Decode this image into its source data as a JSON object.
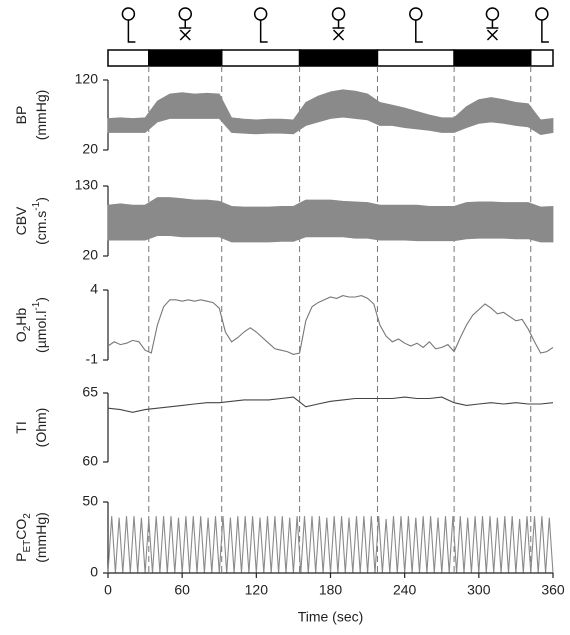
{
  "phases": [
    {
      "start": 0,
      "end": 33,
      "fill": "#ffffff"
    },
    {
      "start": 33,
      "end": 92,
      "fill": "#000000"
    },
    {
      "start": 92,
      "end": 155,
      "fill": "#ffffff"
    },
    {
      "start": 155,
      "end": 218,
      "fill": "#000000"
    },
    {
      "start": 218,
      "end": 280,
      "fill": "#ffffff"
    },
    {
      "start": 280,
      "end": 342,
      "fill": "#000000"
    },
    {
      "start": 342,
      "end": 360,
      "fill": "#ffffff"
    }
  ],
  "chart_data": [
    {
      "type": "band",
      "color": "#8a8a8a",
      "ylabel": [
        [
          {
            "text": "BP"
          }
        ],
        [
          {
            "text": "(mmHg)"
          }
        ]
      ],
      "xlim": [
        0,
        360
      ],
      "ylim": [
        20,
        120
      ],
      "yticks": [
        20,
        120
      ],
      "x": [
        0,
        10,
        20,
        30,
        40,
        50,
        60,
        70,
        80,
        90,
        100,
        110,
        120,
        130,
        140,
        150,
        160,
        170,
        180,
        190,
        200,
        210,
        220,
        230,
        240,
        250,
        260,
        270,
        280,
        290,
        300,
        310,
        320,
        330,
        340,
        350,
        360
      ],
      "series": [
        {
          "values": [
            45,
            45,
            45,
            45,
            60,
            65,
            65,
            65,
            65,
            65,
            45,
            44,
            43,
            44,
            44,
            43,
            55,
            60,
            65,
            67,
            65,
            63,
            55,
            55,
            52,
            50,
            48,
            45,
            45,
            52,
            58,
            60,
            58,
            55,
            53,
            42,
            45
          ]
        },
        {
          "values": [
            65,
            66,
            65,
            66,
            90,
            100,
            102,
            100,
            101,
            100,
            66,
            64,
            63,
            64,
            64,
            63,
            88,
            97,
            103,
            106,
            104,
            100,
            88,
            84,
            80,
            75,
            70,
            66,
            66,
            82,
            92,
            95,
            92,
            88,
            86,
            63,
            65
          ]
        }
      ]
    },
    {
      "type": "band",
      "color": "#8a8a8a",
      "ylabel": [
        [
          {
            "text": "CBV"
          }
        ],
        [
          {
            "text": "(cm.s"
          },
          {
            "text": "-1",
            "sup": true
          },
          {
            "text": ")"
          }
        ]
      ],
      "xlim": [
        0,
        360
      ],
      "ylim": [
        20,
        130
      ],
      "yticks": [
        20,
        130
      ],
      "x": [
        0,
        10,
        20,
        30,
        40,
        50,
        60,
        70,
        80,
        90,
        100,
        110,
        120,
        130,
        140,
        150,
        160,
        170,
        180,
        190,
        200,
        210,
        220,
        230,
        240,
        250,
        260,
        270,
        280,
        290,
        300,
        310,
        320,
        330,
        340,
        350,
        360
      ],
      "series": [
        {
          "values": [
            45,
            45,
            45,
            45,
            52,
            52,
            50,
            50,
            50,
            50,
            42,
            42,
            42,
            42,
            43,
            43,
            50,
            50,
            50,
            50,
            48,
            48,
            45,
            45,
            45,
            44,
            44,
            44,
            44,
            47,
            48,
            48,
            48,
            47,
            47,
            42,
            42
          ]
        },
        {
          "values": [
            100,
            102,
            100,
            100,
            112,
            112,
            110,
            108,
            108,
            106,
            98,
            97,
            97,
            97,
            98,
            98,
            108,
            108,
            108,
            106,
            105,
            104,
            100,
            100,
            100,
            100,
            98,
            98,
            98,
            104,
            105,
            105,
            104,
            104,
            104,
            97,
            98
          ]
        }
      ]
    },
    {
      "type": "line",
      "color": "#777777",
      "ylabel": [
        [
          {
            "text": "O"
          },
          {
            "text": "2",
            "sub": true
          },
          {
            "text": "Hb"
          }
        ],
        [
          {
            "text": "(µmol.l"
          },
          {
            "text": "-1",
            "sup": true
          },
          {
            "text": ")"
          }
        ]
      ],
      "xlim": [
        0,
        360
      ],
      "ylim": [
        -1,
        4
      ],
      "yticks": [
        -1,
        4
      ],
      "x": [
        0,
        5,
        10,
        15,
        20,
        25,
        30,
        35,
        40,
        45,
        50,
        55,
        60,
        65,
        70,
        75,
        80,
        85,
        90,
        95,
        100,
        105,
        110,
        115,
        120,
        125,
        130,
        135,
        140,
        145,
        150,
        155,
        160,
        165,
        170,
        175,
        180,
        185,
        190,
        195,
        200,
        205,
        210,
        215,
        220,
        225,
        230,
        235,
        240,
        245,
        250,
        255,
        260,
        265,
        270,
        275,
        280,
        285,
        290,
        295,
        300,
        305,
        310,
        315,
        320,
        325,
        330,
        335,
        340,
        345,
        350,
        355,
        360
      ],
      "series": [
        {
          "values": [
            0.0,
            0.3,
            0.1,
            0.2,
            0.4,
            0.3,
            -0.3,
            -0.5,
            1.5,
            2.8,
            3.3,
            3.3,
            3.2,
            3.3,
            3.2,
            3.3,
            3.2,
            3.1,
            2.7,
            1.0,
            0.3,
            0.6,
            1.0,
            1.3,
            1.0,
            0.6,
            0.2,
            -0.2,
            -0.3,
            -0.4,
            -0.6,
            -0.5,
            1.8,
            2.8,
            3.1,
            3.3,
            3.5,
            3.4,
            3.6,
            3.5,
            3.5,
            3.6,
            3.4,
            3.0,
            1.5,
            0.7,
            0.3,
            0.5,
            0.2,
            0.0,
            0.2,
            -0.1,
            0.3,
            -0.2,
            -0.1,
            0.1,
            -0.4,
            0.6,
            1.5,
            2.2,
            2.6,
            3.0,
            2.7,
            2.3,
            2.4,
            2.1,
            1.8,
            1.9,
            1.2,
            0.3,
            -0.5,
            -0.4,
            -0.1
          ]
        }
      ]
    },
    {
      "type": "line",
      "color": "#444444",
      "ylabel": [
        [
          {
            "text": "TI"
          }
        ],
        [
          {
            "text": "(Ohm)"
          }
        ]
      ],
      "xlim": [
        0,
        360
      ],
      "ylim": [
        60,
        65
      ],
      "yticks": [
        60,
        65
      ],
      "x": [
        0,
        10,
        20,
        30,
        40,
        50,
        60,
        70,
        80,
        90,
        100,
        110,
        120,
        130,
        140,
        150,
        160,
        170,
        180,
        190,
        200,
        210,
        220,
        230,
        240,
        250,
        260,
        270,
        280,
        290,
        300,
        310,
        320,
        330,
        340,
        350,
        360
      ],
      "series": [
        {
          "values": [
            63.9,
            63.8,
            63.6,
            63.8,
            63.9,
            64.0,
            64.1,
            64.2,
            64.3,
            64.3,
            64.4,
            64.5,
            64.5,
            64.5,
            64.6,
            64.7,
            64.0,
            64.2,
            64.4,
            64.5,
            64.6,
            64.6,
            64.6,
            64.6,
            64.7,
            64.6,
            64.6,
            64.7,
            64.3,
            64.1,
            64.2,
            64.3,
            64.2,
            64.3,
            64.2,
            64.2,
            64.3
          ]
        }
      ]
    },
    {
      "type": "line",
      "color": "#8a8a8a",
      "ylabel": [
        [
          {
            "text": "P"
          },
          {
            "text": "ET",
            "sub": true
          },
          {
            "text": "CO"
          },
          {
            "text": "2",
            "sub": true
          }
        ],
        [
          {
            "text": "(mmHg)"
          }
        ]
      ],
      "xlim": [
        0,
        360
      ],
      "ylim": [
        0,
        50
      ],
      "yticks": [
        0,
        50
      ],
      "xticks": [
        0,
        60,
        120,
        180,
        240,
        300,
        360
      ],
      "xlabel": "Time (sec)",
      "x": [
        0,
        3,
        6,
        9,
        12,
        15,
        18,
        21,
        24,
        27,
        30,
        33,
        36,
        39,
        42,
        45,
        48,
        51,
        54,
        57,
        60,
        63,
        66,
        69,
        72,
        75,
        78,
        81,
        84,
        87,
        90,
        93,
        96,
        99,
        102,
        105,
        108,
        111,
        114,
        117,
        120,
        123,
        126,
        129,
        132,
        135,
        138,
        141,
        144,
        147,
        150,
        153,
        156,
        159,
        162,
        165,
        168,
        171,
        174,
        177,
        180,
        183,
        186,
        189,
        192,
        195,
        198,
        201,
        204,
        207,
        210,
        213,
        216,
        219,
        222,
        225,
        228,
        231,
        234,
        237,
        240,
        243,
        246,
        249,
        252,
        255,
        258,
        261,
        264,
        267,
        270,
        273,
        276,
        279,
        282,
        285,
        288,
        291,
        294,
        297,
        300,
        303,
        306,
        309,
        312,
        315,
        318,
        321,
        324,
        327,
        330,
        333,
        336,
        339,
        342,
        345,
        348,
        351,
        354,
        357,
        360
      ],
      "series": [
        {
          "values": [
            0,
            40,
            0,
            39,
            0,
            40,
            0,
            40,
            0,
            39,
            0,
            38,
            0,
            40,
            0,
            40,
            0,
            40,
            0,
            39,
            0,
            40,
            0,
            40,
            0,
            40,
            0,
            39,
            0,
            40,
            0,
            40,
            0,
            39,
            0,
            40,
            0,
            40,
            0,
            40,
            0,
            39,
            0,
            40,
            0,
            40,
            0,
            40,
            0,
            39,
            0,
            40,
            0,
            40,
            0,
            40,
            0,
            40,
            0,
            39,
            0,
            40,
            0,
            40,
            0,
            39,
            0,
            40,
            0,
            40,
            0,
            40,
            0,
            40,
            0,
            38,
            0,
            40,
            0,
            40,
            0,
            40,
            0,
            39,
            0,
            40,
            0,
            40,
            0,
            39,
            0,
            40,
            0,
            40,
            0,
            40,
            0,
            39,
            0,
            40,
            0,
            40,
            0,
            40,
            0,
            39,
            0,
            40,
            0,
            40,
            0,
            38,
            0,
            40,
            0,
            40,
            0,
            40,
            0,
            39,
            0
          ]
        }
      ]
    }
  ]
}
